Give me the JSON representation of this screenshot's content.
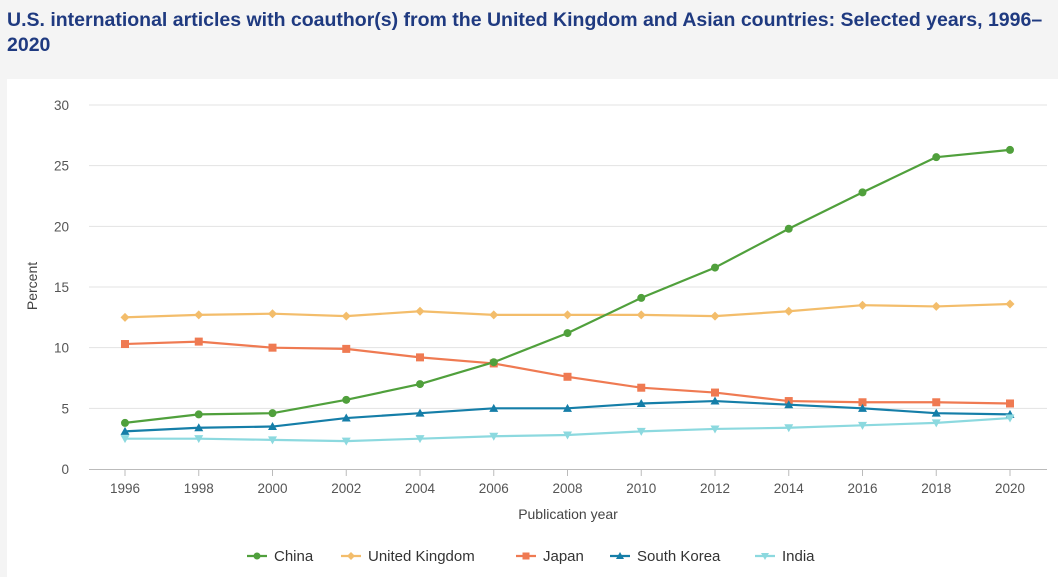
{
  "title": "U.S. international articles with coauthor(s) from the United Kingdom and Asian countries: Selected years, 1996–2020",
  "chart_data": {
    "type": "line",
    "title": "U.S. international articles with coauthor(s) from the United Kingdom and Asian countries: Selected years, 1996–2020",
    "xlabel": "Publication year",
    "ylabel": "Percent",
    "ylim": [
      0,
      30
    ],
    "yticks": [
      "0",
      "5",
      "10",
      "15",
      "20",
      "25",
      "30"
    ],
    "grid": true,
    "legend_position": "bottom",
    "x": [
      "1996",
      "1998",
      "2000",
      "2002",
      "2004",
      "2006",
      "2008",
      "2010",
      "2012",
      "2014",
      "2016",
      "2018",
      "2020"
    ],
    "series": [
      {
        "name": "China",
        "color": "#50a03c",
        "marker": "circle",
        "values": [
          3.8,
          4.5,
          4.6,
          5.7,
          7.0,
          8.8,
          11.2,
          14.1,
          16.6,
          19.8,
          22.8,
          25.7,
          26.3
        ]
      },
      {
        "name": "United Kingdom",
        "color": "#f3bd6b",
        "marker": "diamond",
        "values": [
          12.5,
          12.7,
          12.8,
          12.6,
          13.0,
          12.7,
          12.7,
          12.7,
          12.6,
          13.0,
          13.5,
          13.4,
          13.6
        ]
      },
      {
        "name": "Japan",
        "color": "#ef7a52",
        "marker": "square",
        "values": [
          10.3,
          10.5,
          10.0,
          9.9,
          9.2,
          8.7,
          7.6,
          6.7,
          6.3,
          5.6,
          5.5,
          5.5,
          5.4
        ]
      },
      {
        "name": "South Korea",
        "color": "#157ea8",
        "marker": "triangle",
        "values": [
          3.1,
          3.4,
          3.5,
          4.2,
          4.6,
          5.0,
          5.0,
          5.4,
          5.6,
          5.3,
          5.0,
          4.6,
          4.5
        ]
      },
      {
        "name": "India",
        "color": "#8cd9df",
        "marker": "triangle-down",
        "values": [
          2.5,
          2.5,
          2.4,
          2.3,
          2.5,
          2.7,
          2.8,
          3.1,
          3.3,
          3.4,
          3.6,
          3.8,
          4.2
        ]
      }
    ]
  }
}
